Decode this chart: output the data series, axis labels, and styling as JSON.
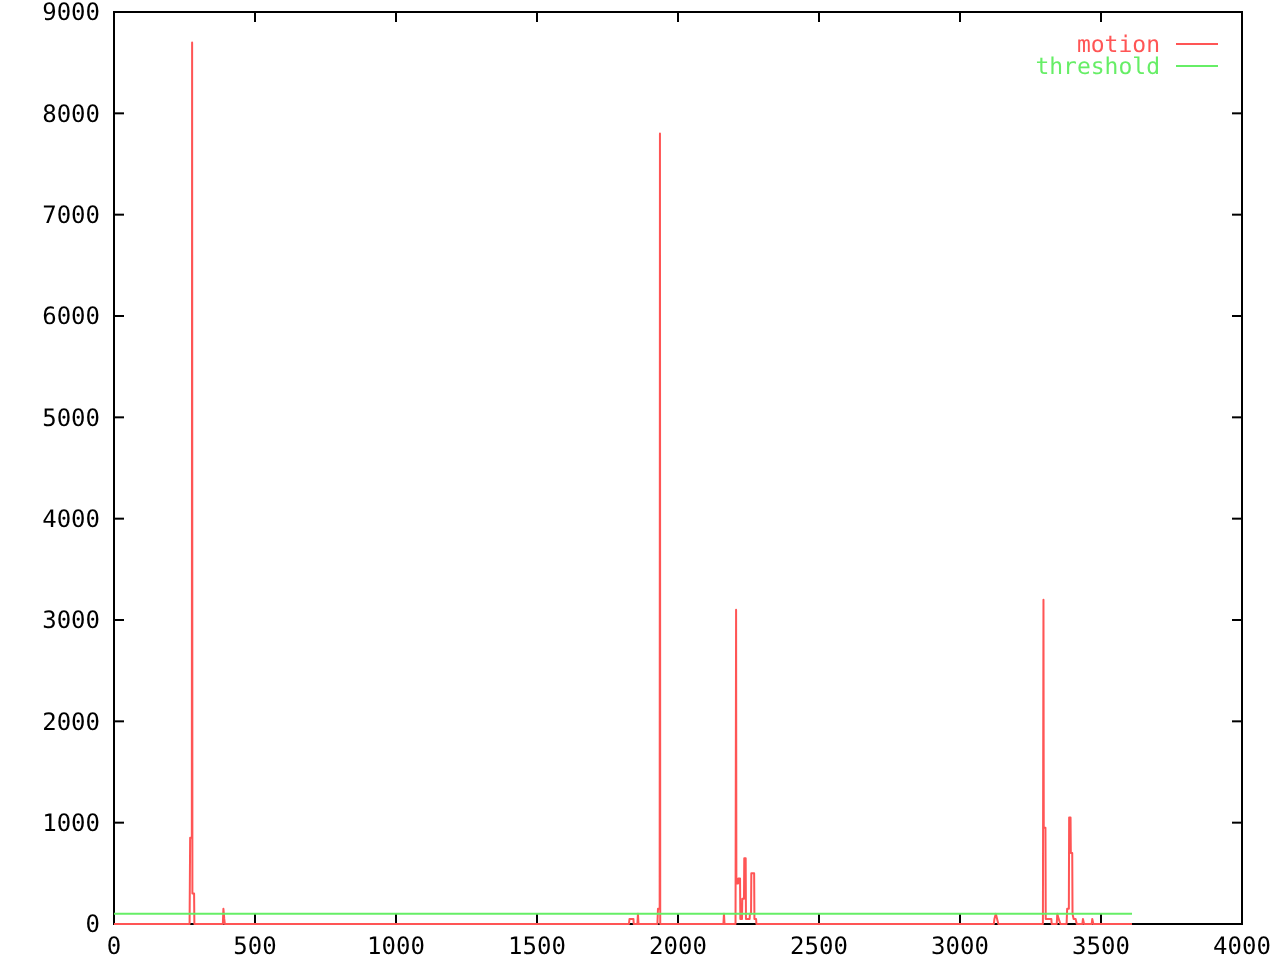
{
  "chart_data": {
    "type": "line",
    "series": [
      {
        "name": "motion",
        "color": "#ff5555",
        "x": [
          0,
          268,
          270,
          276,
          277,
          278,
          284,
          285,
          386,
          388,
          391,
          393,
          1826,
          1828,
          1842,
          1843,
          1856,
          1858,
          1860,
          1927,
          1929,
          1935,
          1936,
          1937,
          2161,
          2163,
          2165,
          2204,
          2206,
          2207,
          2213,
          2214,
          2220,
          2221,
          2227,
          2228,
          2234,
          2235,
          2240,
          2241,
          2254,
          2255,
          2259,
          2260,
          2264,
          2265,
          2270,
          2271,
          2277,
          2278,
          3120,
          3122,
          3127,
          3136,
          3294,
          3296,
          3297,
          3303,
          3304,
          3310,
          3311,
          3324,
          3325,
          3343,
          3345,
          3350,
          3356,
          3378,
          3380,
          3386,
          3387,
          3392,
          3393,
          3398,
          3399,
          3403,
          3410,
          3414,
          3434,
          3436,
          3440,
          3467,
          3469,
          3473,
          3610
        ],
        "values": [
          0,
          0,
          850,
          850,
          8700,
          300,
          300,
          0,
          0,
          150,
          50,
          0,
          0,
          50,
          50,
          0,
          0,
          100,
          0,
          0,
          150,
          150,
          7800,
          0,
          0,
          100,
          0,
          0,
          3100,
          400,
          400,
          450,
          450,
          50,
          50,
          250,
          250,
          650,
          650,
          50,
          50,
          100,
          100,
          500,
          500,
          500,
          500,
          50,
          50,
          0,
          0,
          50,
          100,
          0,
          0,
          3200,
          950,
          950,
          50,
          50,
          50,
          50,
          0,
          0,
          100,
          50,
          0,
          0,
          150,
          150,
          1050,
          1050,
          700,
          700,
          100,
          50,
          50,
          0,
          0,
          50,
          0,
          0,
          50,
          0,
          0
        ]
      },
      {
        "name": "threshold",
        "color": "#66ee66",
        "x": [
          0,
          3610
        ],
        "values": [
          100,
          100
        ]
      }
    ],
    "xlim": [
      0,
      4000
    ],
    "ylim": [
      0,
      9000
    ],
    "xticks": [
      0,
      500,
      1000,
      1500,
      2000,
      2500,
      3000,
      3500,
      4000
    ],
    "yticks": [
      0,
      1000,
      2000,
      3000,
      4000,
      5000,
      6000,
      7000,
      8000,
      9000
    ],
    "legend": "top right",
    "line_style": "solid"
  }
}
